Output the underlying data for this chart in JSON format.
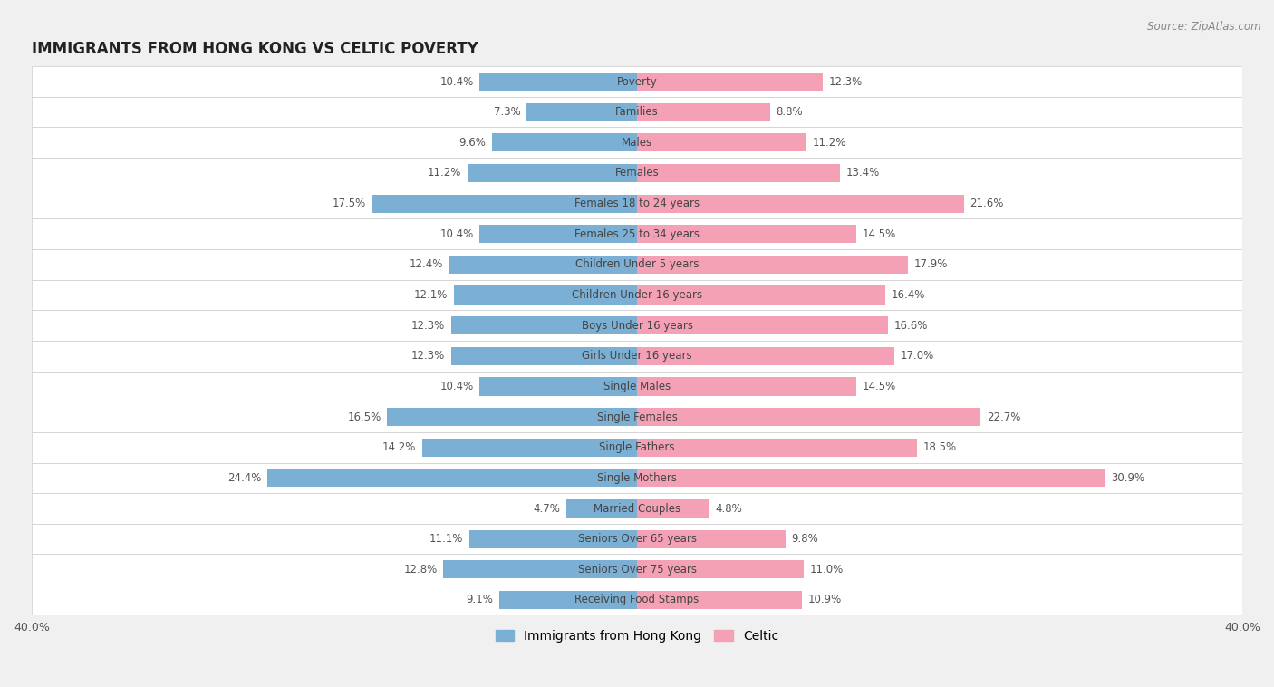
{
  "title": "IMMIGRANTS FROM HONG KONG VS CELTIC POVERTY",
  "source": "Source: ZipAtlas.com",
  "categories": [
    "Poverty",
    "Families",
    "Males",
    "Females",
    "Females 18 to 24 years",
    "Females 25 to 34 years",
    "Children Under 5 years",
    "Children Under 16 years",
    "Boys Under 16 years",
    "Girls Under 16 years",
    "Single Males",
    "Single Females",
    "Single Fathers",
    "Single Mothers",
    "Married Couples",
    "Seniors Over 65 years",
    "Seniors Over 75 years",
    "Receiving Food Stamps"
  ],
  "hong_kong_values": [
    10.4,
    7.3,
    9.6,
    11.2,
    17.5,
    10.4,
    12.4,
    12.1,
    12.3,
    12.3,
    10.4,
    16.5,
    14.2,
    24.4,
    4.7,
    11.1,
    12.8,
    9.1
  ],
  "celtic_values": [
    12.3,
    8.8,
    11.2,
    13.4,
    21.6,
    14.5,
    17.9,
    16.4,
    16.6,
    17.0,
    14.5,
    22.7,
    18.5,
    30.9,
    4.8,
    9.8,
    11.0,
    10.9
  ],
  "hong_kong_color": "#7bafd4",
  "celtic_color": "#f4a0b5",
  "background_color": "#f0f0f0",
  "row_white_color": "#ffffff",
  "row_gray_color": "#e8e8e8",
  "bar_height": 0.6,
  "xlim": 40.0,
  "legend_labels": [
    "Immigrants from Hong Kong",
    "Celtic"
  ],
  "label_fontsize": 8.5,
  "cat_fontsize": 8.5,
  "title_fontsize": 12
}
